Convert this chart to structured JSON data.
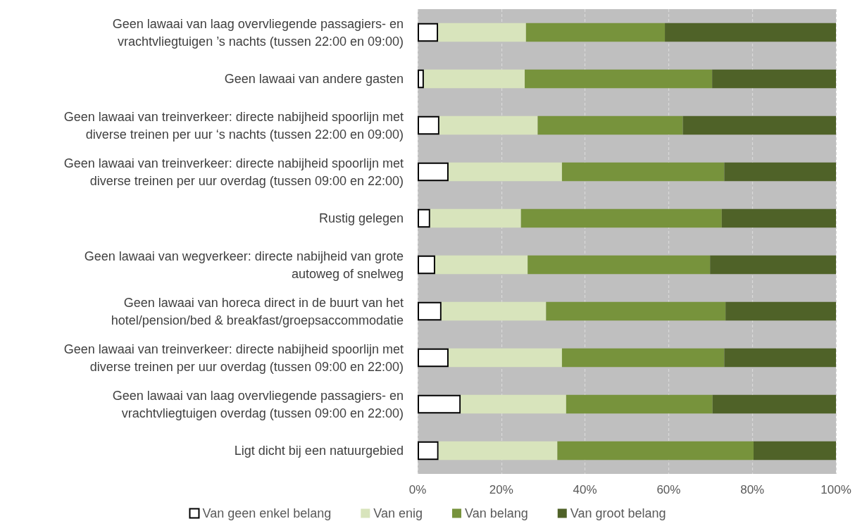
{
  "chart_data": {
    "type": "bar",
    "orientation": "horizontal",
    "stacked": true,
    "categories": [
      "Geen lawaai van laag overvliegende passagiers- en vrachtvliegtuigen ’s nachts (tussen 22:00 en 09:00)",
      "Geen lawaai van andere gasten",
      "Geen lawaai van treinverkeer: directe nabijheid spoorlijn met diverse treinen per uur ‘s nachts (tussen 22:00 en 09:00)",
      "Geen lawaai van treinverkeer: directe nabijheid spoorlijn met diverse treinen per uur overdag (tussen 09:00 en 22:00)",
      "Rustig gelegen",
      "Geen lawaai van wegverkeer: directe nabijheid van grote autoweg of snelweg",
      "Geen lawaai van horeca direct in de buurt van het hotel/pension/bed & breakfast/groepsaccommodatie",
      "Geen lawaai van treinverkeer: directe nabijheid spoorlijn met diverse treinen per uur overdag (tussen 09:00 en 22:00)",
      "Geen lawaai van laag overvliegende passagiers- en vrachtvliegtuigen overdag (tussen 09:00 en 22:00)",
      "Ligt dicht bij een natuurgebied"
    ],
    "series": [
      {
        "name": "Van geen enkel belang",
        "color": "#ffffff",
        "values": [
          4.9,
          1.5,
          5.2,
          7.4,
          3.0,
          4.2,
          5.7,
          7.4,
          10.3,
          5.0
        ]
      },
      {
        "name": "Van enig",
        "color": "#d8e4bc",
        "values": [
          21.0,
          24.1,
          23.5,
          27.1,
          21.7,
          22.1,
          25.0,
          27.1,
          25.2,
          28.4
        ]
      },
      {
        "name": "Van belang",
        "color": "#77933c",
        "values": [
          33.2,
          44.8,
          34.7,
          38.8,
          48.0,
          43.6,
          42.9,
          38.8,
          35.0,
          46.9
        ]
      },
      {
        "name": "Van groot belang",
        "color": "#4f6228",
        "values": [
          40.9,
          29.6,
          36.6,
          26.7,
          27.3,
          30.1,
          26.4,
          26.7,
          29.5,
          19.7
        ]
      }
    ],
    "xlim": [
      0,
      100
    ],
    "xticks": [
      {
        "value": 0,
        "label": "0%"
      },
      {
        "value": 20,
        "label": "20%"
      },
      {
        "value": 40,
        "label": "40%"
      },
      {
        "value": 60,
        "label": "60%"
      },
      {
        "value": 80,
        "label": "80%"
      },
      {
        "value": 100,
        "label": "100%"
      }
    ],
    "grid": "x",
    "legend": "bottom"
  }
}
